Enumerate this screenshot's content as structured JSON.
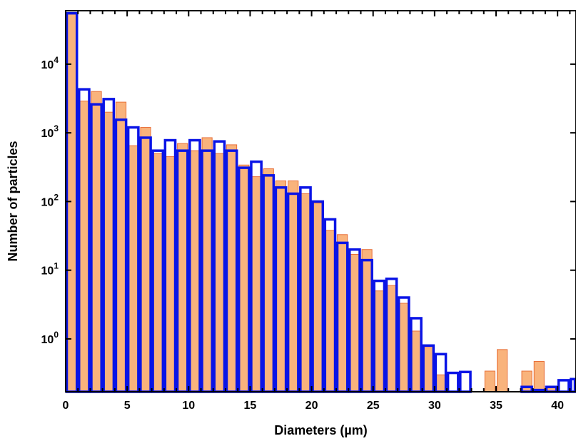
{
  "chart_data": {
    "type": "bar",
    "title": "",
    "xlabel": "Diameters (µm)",
    "ylabel": "Number of particles",
    "xlim": [
      0,
      41.5
    ],
    "ylim": [
      0.17,
      60000
    ],
    "yscale": "log",
    "grid": false,
    "legend": "none",
    "bin_width": 1,
    "x_ticks": [
      {
        "value": 0,
        "label": "0"
      },
      {
        "value": 5,
        "label": "5"
      },
      {
        "value": 10,
        "label": "10"
      },
      {
        "value": 15,
        "label": "15"
      },
      {
        "value": 20,
        "label": "20"
      },
      {
        "value": 25,
        "label": "25"
      },
      {
        "value": 30,
        "label": "30"
      },
      {
        "value": 35,
        "label": "35"
      },
      {
        "value": 40,
        "label": "40"
      }
    ],
    "y_ticks": [
      {
        "value": 1,
        "base": "10",
        "exp": "0"
      },
      {
        "value": 10,
        "base": "10",
        "exp": "1"
      },
      {
        "value": 100,
        "base": "10",
        "exp": "2"
      },
      {
        "value": 1000,
        "base": "10",
        "exp": "3"
      },
      {
        "value": 10000,
        "base": "10",
        "exp": "4"
      }
    ],
    "colors": {
      "series_a_fill": "#f9b37c",
      "series_a_edge": "#e8703a",
      "series_b_edge": "#0a14e6",
      "overlap": "#8c5a8c"
    },
    "series": [
      {
        "style": "filled",
        "x": [
          0.5,
          1.5,
          2.5,
          3.5,
          4.5,
          5.5,
          6.5,
          7.5,
          8.5,
          9.5,
          10.5,
          11.5,
          12.5,
          13.5,
          14.5,
          15.5,
          16.5,
          17.5,
          18.5,
          19.5,
          20.5,
          21.5,
          22.5,
          23.5,
          24.5,
          25.5,
          26.5,
          27.5,
          28.5,
          29.5,
          30.5,
          34.5,
          35.5,
          37.5,
          38.5,
          39.5
        ],
        "values": [
          55000,
          2900,
          4000,
          2000,
          2800,
          650,
          1200,
          500,
          450,
          700,
          550,
          850,
          500,
          670,
          340,
          230,
          300,
          200,
          200,
          130,
          95,
          38,
          33,
          17,
          20,
          5,
          6,
          3.3,
          1.3,
          0.75,
          0.3,
          0.34,
          0.7,
          0.34,
          0.47,
          0.2
        ]
      },
      {
        "style": "outline",
        "x": [
          0.5,
          1.5,
          2.5,
          3.5,
          4.5,
          5.5,
          6.5,
          7.5,
          8.5,
          9.5,
          10.5,
          11.5,
          12.5,
          13.5,
          14.5,
          15.5,
          16.5,
          17.5,
          18.5,
          19.5,
          20.5,
          21.5,
          22.5,
          23.5,
          24.5,
          25.5,
          26.5,
          27.5,
          28.5,
          29.5,
          30.5,
          31.5,
          32.5,
          37.5,
          38.5,
          39.5,
          40.5,
          41.5
        ],
        "values": [
          55000,
          4300,
          2600,
          3100,
          1550,
          1200,
          850,
          550,
          780,
          550,
          780,
          550,
          750,
          550,
          310,
          380,
          240,
          160,
          130,
          160,
          100,
          55,
          25,
          20,
          14,
          7,
          7.5,
          4,
          2,
          0.8,
          0.6,
          0.32,
          0.33,
          0.2,
          0.18,
          0.2,
          0.25,
          0.26
        ]
      }
    ]
  }
}
